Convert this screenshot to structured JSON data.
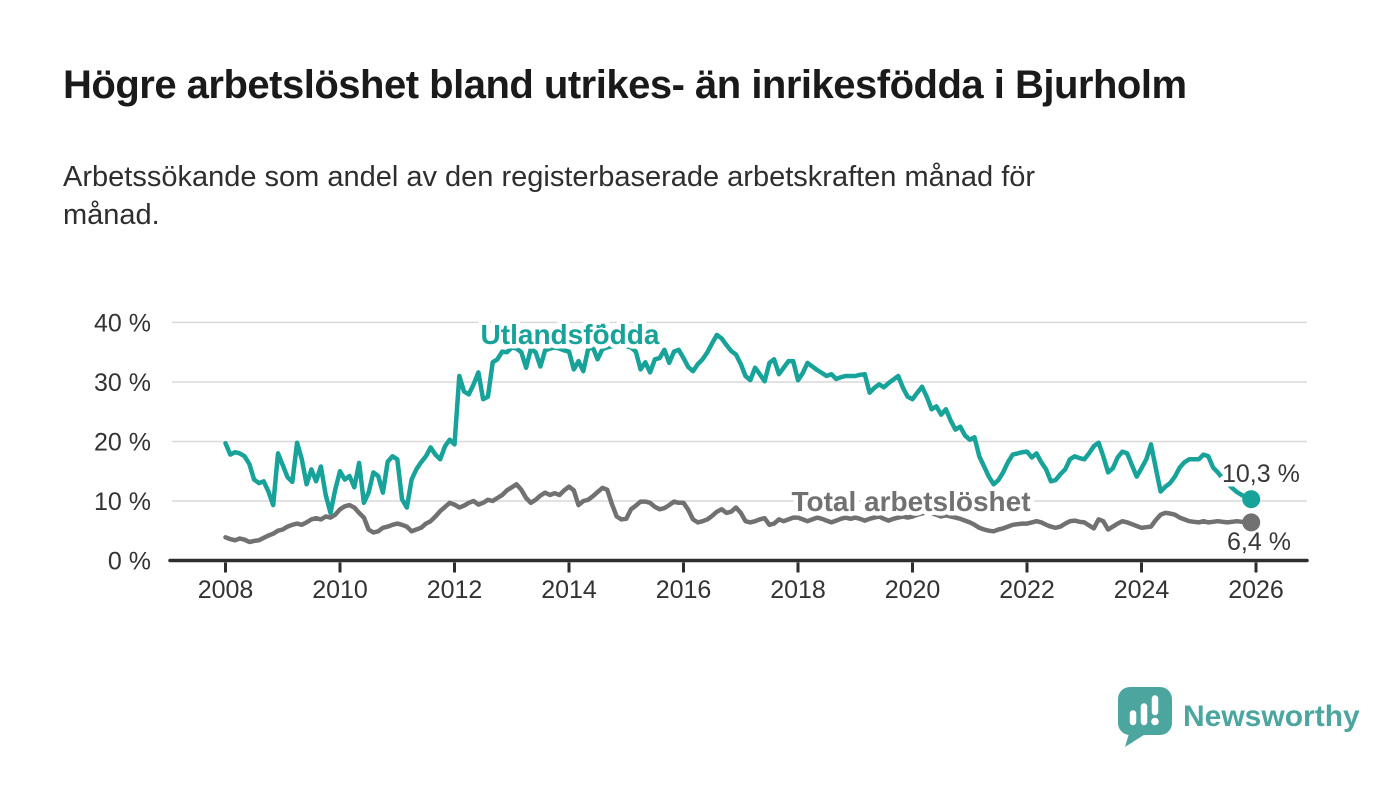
{
  "header": {
    "title": "Högre arbetslöshet bland utrikes- än inrikesfödda i Bjurholm",
    "subtitle_lines": [
      "Arbetssökande som andel av den registerbaserade arbetskraften månad för",
      "månad."
    ]
  },
  "footer": {
    "logo_text": "Newsworthy",
    "logo_color": "#4ca69f"
  },
  "chart_data": {
    "type": "line",
    "title": "Högre arbetslöshet bland utrikes- än inrikesfödda i Bjurholm",
    "frequency": "monthly",
    "x_start": "2008-01",
    "x_end": "2025-12",
    "ylim": [
      0,
      42
    ],
    "grid": "horizontal",
    "legend_position": "inline-labels",
    "y_ticks": [
      {
        "v": 0,
        "label": "0 %"
      },
      {
        "v": 10,
        "label": "10 %"
      },
      {
        "v": 20,
        "label": "20 %"
      },
      {
        "v": 30,
        "label": "30 %"
      },
      {
        "v": 40,
        "label": "40 %"
      }
    ],
    "x_ticks": [
      {
        "v": 2008,
        "label": "2008"
      },
      {
        "v": 2010,
        "label": "2010"
      },
      {
        "v": 2012,
        "label": "2012"
      },
      {
        "v": 2014,
        "label": "2014"
      },
      {
        "v": 2016,
        "label": "2016"
      },
      {
        "v": 2018,
        "label": "2018"
      },
      {
        "v": 2020,
        "label": "2020"
      },
      {
        "v": 2022,
        "label": "2022"
      },
      {
        "v": 2024,
        "label": "2024"
      },
      {
        "v": 2026,
        "label": "2026"
      }
    ],
    "series": [
      {
        "name": "Utlandsfödda",
        "display_label": "Utlandsfö́dda",
        "color": "#17a29a",
        "end_label": "10,3 %",
        "last_value": 10.3,
        "values": [
          19.7,
          17.8,
          18.2,
          18.0,
          17.5,
          16.2,
          13.6,
          13.0,
          13.3,
          11.6,
          9.3,
          18.0,
          16.0,
          14.0,
          13.2,
          19.8,
          17.0,
          12.8,
          15.3,
          13.3,
          15.8,
          11.0,
          8.0,
          11.9,
          15.0,
          13.6,
          14.2,
          12.3,
          16.4,
          9.7,
          11.4,
          14.8,
          14.2,
          11.4,
          16.6,
          17.5,
          17.0,
          10.3,
          8.9,
          13.6,
          15.3,
          16.5,
          17.5,
          19.0,
          17.8,
          17.0,
          19.2,
          20.3,
          19.5,
          31.0,
          28.4,
          27.9,
          29.6,
          31.6,
          27.1,
          27.5,
          33.3,
          33.8,
          35.1,
          35.0,
          35.8,
          35.6,
          35.0,
          32.4,
          35.5,
          35.0,
          32.6,
          35.3,
          35.6,
          35.8,
          35.6,
          35.3,
          35.1,
          32.1,
          33.5,
          31.8,
          35.5,
          35.8,
          33.8,
          35.5,
          35.8,
          36.0,
          36.0,
          36.0,
          36.0,
          35.8,
          35.1,
          32.1,
          33.3,
          31.6,
          33.8,
          34.0,
          35.4,
          33.2,
          35.1,
          35.4,
          34.0,
          32.5,
          31.8,
          33.0,
          33.8,
          35.0,
          36.5,
          37.9,
          37.3,
          36.2,
          35.2,
          34.6,
          33.0,
          31.0,
          30.3,
          32.4,
          31.3,
          30.1,
          33.2,
          33.8,
          31.3,
          32.4,
          33.5,
          33.5,
          30.3,
          31.5,
          33.2,
          32.6,
          32.0,
          31.5,
          31.0,
          31.3,
          30.5,
          30.8,
          31.0,
          31.0,
          31.0,
          31.2,
          31.3,
          28.2,
          29.0,
          29.6,
          29.1,
          29.8,
          30.4,
          31.0,
          29.0,
          27.5,
          27.1,
          28.2,
          29.2,
          27.5,
          25.4,
          25.9,
          24.5,
          25.4,
          23.5,
          22.0,
          22.5,
          21.0,
          20.3,
          20.7,
          17.5,
          15.8,
          14.1,
          12.8,
          13.5,
          14.8,
          16.5,
          17.8,
          18.0,
          18.2,
          18.3,
          17.3,
          18.0,
          16.5,
          15.3,
          13.3,
          13.5,
          14.5,
          15.3,
          17.0,
          17.5,
          17.2,
          17.0,
          18.0,
          19.2,
          19.8,
          17.5,
          14.8,
          15.5,
          17.3,
          18.3,
          18.0,
          16.0,
          14.1,
          15.5,
          17.0,
          19.5,
          15.5,
          11.6,
          12.4,
          13.0,
          14.1,
          15.6,
          16.5,
          17.0,
          17.0,
          17.0,
          17.8,
          17.5,
          15.6,
          14.8,
          13.8,
          13.0,
          12.2,
          11.5,
          11.0,
          10.6,
          10.3
        ]
      },
      {
        "name": "Total arbetslöshet",
        "display_label": "Total arbetslöshet",
        "color": "#717171",
        "end_label": "6,4 %",
        "last_value": 6.4,
        "values": [
          3.9,
          3.6,
          3.4,
          3.7,
          3.5,
          3.1,
          3.3,
          3.4,
          3.8,
          4.2,
          4.5,
          5.0,
          5.2,
          5.7,
          6.0,
          6.2,
          6.0,
          6.4,
          6.9,
          7.1,
          6.9,
          7.4,
          7.2,
          7.7,
          8.6,
          9.1,
          9.3,
          8.9,
          8.0,
          7.2,
          5.2,
          4.7,
          4.9,
          5.5,
          5.7,
          6.0,
          6.2,
          6.0,
          5.7,
          4.9,
          5.2,
          5.5,
          6.2,
          6.6,
          7.4,
          8.3,
          9.0,
          9.7,
          9.4,
          8.9,
          9.2,
          9.7,
          10.0,
          9.4,
          9.7,
          10.2,
          10.0,
          10.5,
          11.0,
          11.8,
          12.3,
          12.8,
          11.9,
          10.5,
          9.7,
          10.2,
          10.9,
          11.4,
          11.0,
          11.3,
          11.0,
          11.8,
          12.4,
          11.8,
          9.3,
          10.0,
          10.2,
          10.8,
          11.5,
          12.2,
          11.9,
          9.5,
          7.4,
          6.9,
          7.0,
          8.6,
          9.2,
          9.9,
          9.9,
          9.7,
          9.0,
          8.6,
          8.8,
          9.3,
          9.9,
          9.7,
          9.7,
          8.5,
          6.9,
          6.4,
          6.6,
          6.9,
          7.5,
          8.2,
          8.6,
          8.0,
          8.2,
          8.9,
          8.0,
          6.6,
          6.4,
          6.6,
          6.9,
          7.1,
          6.0,
          6.2,
          6.9,
          6.6,
          6.9,
          7.2,
          7.2,
          6.9,
          6.6,
          6.9,
          7.2,
          7.0,
          6.7,
          6.4,
          6.7,
          7.0,
          7.2,
          7.0,
          7.2,
          7.0,
          6.7,
          7.0,
          7.2,
          7.4,
          7.0,
          6.7,
          7.0,
          7.2,
          7.4,
          7.2,
          7.4,
          7.7,
          7.9,
          8.1,
          7.9,
          7.7,
          7.4,
          7.6,
          7.4,
          7.2,
          7.0,
          6.7,
          6.4,
          6.0,
          5.5,
          5.2,
          5.0,
          4.9,
          5.2,
          5.4,
          5.7,
          6.0,
          6.1,
          6.2,
          6.2,
          6.4,
          6.6,
          6.4,
          6.0,
          5.7,
          5.5,
          5.7,
          6.2,
          6.6,
          6.7,
          6.5,
          6.4,
          5.9,
          5.4,
          6.9,
          6.6,
          5.2,
          5.7,
          6.2,
          6.6,
          6.4,
          6.1,
          5.8,
          5.5,
          5.6,
          5.7,
          6.8,
          7.7,
          8.0,
          7.9,
          7.7,
          7.2,
          6.9,
          6.6,
          6.5,
          6.4,
          6.6,
          6.4,
          6.5,
          6.6,
          6.5,
          6.4,
          6.5,
          6.6,
          6.5,
          6.4,
          6.4
        ]
      }
    ]
  }
}
